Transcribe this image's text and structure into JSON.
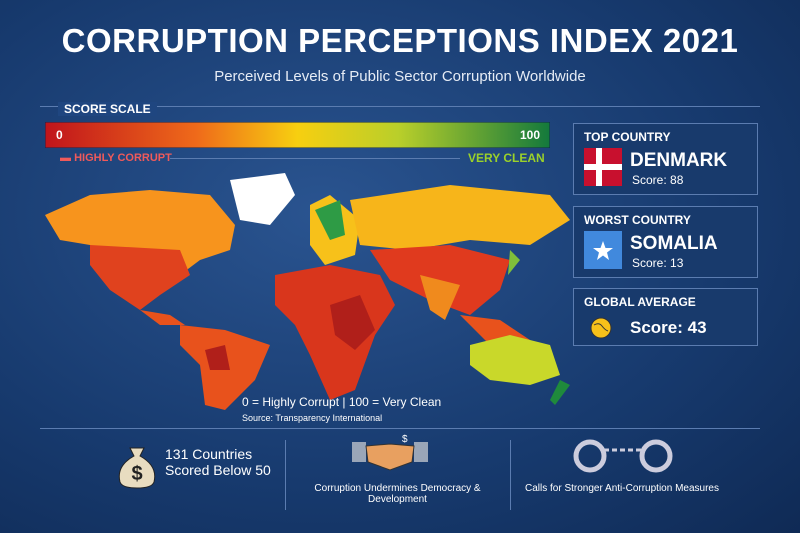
{
  "header": {
    "title": "CORRUPTION PERCEPTIONS INDEX 2021",
    "subtitle": "Perceived Levels of Public Sector Corruption Worldwide"
  },
  "scale": {
    "label": "SCORE SCALE",
    "min": "0",
    "max": "100",
    "low_label": "HIGHLY CORRUPT",
    "high_label": "VERY CLEAN"
  },
  "legend": {
    "note": "0 = Highly Corrupt | 100 = Very Clean",
    "source": "Source: Transparency International"
  },
  "panels": [
    {
      "heading": "TOP COUNTRY",
      "country": "DENMARK",
      "score": "Score: 88"
    },
    {
      "heading": "WORST COUNTRY",
      "country": "SOMALIA",
      "score": "Score: 13"
    },
    {
      "heading": "GLOBAL AVERAGE",
      "score": "Score: 43"
    }
  ],
  "facts": [
    {
      "lines": [
        "131 Countries",
        "Scored Below 50"
      ]
    },
    {
      "lines": [
        "Corruption Undermines Democracy & Development"
      ]
    },
    {
      "lines": [
        "Calls for Stronger Anti-Corruption Measures"
      ]
    }
  ]
}
